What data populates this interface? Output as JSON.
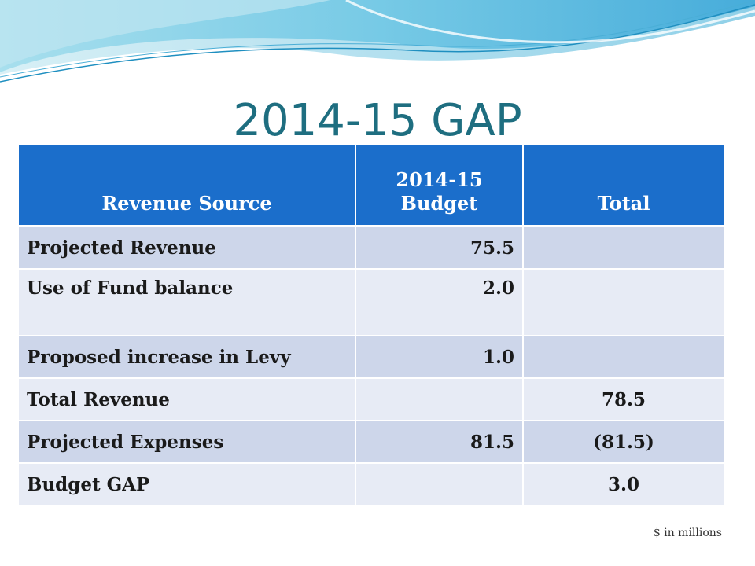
{
  "slide": {
    "title": "2014-15 GAP",
    "footnote": "$ in millions"
  },
  "table": {
    "headers": {
      "col1": "Revenue Source",
      "col2_line1": "2014-15",
      "col2_line2": "Budget",
      "col3": "Total"
    },
    "rows": [
      {
        "label": "Projected Revenue",
        "budget": "75.5",
        "total": ""
      },
      {
        "label": "Use of Fund balance",
        "budget": "2.0",
        "total": ""
      },
      {
        "label": "Proposed increase in Levy",
        "budget": "1.0",
        "total": ""
      },
      {
        "label": "Total Revenue",
        "budget": "",
        "total": "78.5"
      },
      {
        "label": "Projected Expenses",
        "budget": "81.5",
        "total": "(81.5)"
      },
      {
        "label": "Budget GAP",
        "budget": "",
        "total": "3.0"
      }
    ]
  },
  "colors": {
    "title": "#1e6e80",
    "header_bg": "#1b6ecb",
    "row_dark": "#cdd6ea",
    "row_light": "#e7ebf5"
  }
}
